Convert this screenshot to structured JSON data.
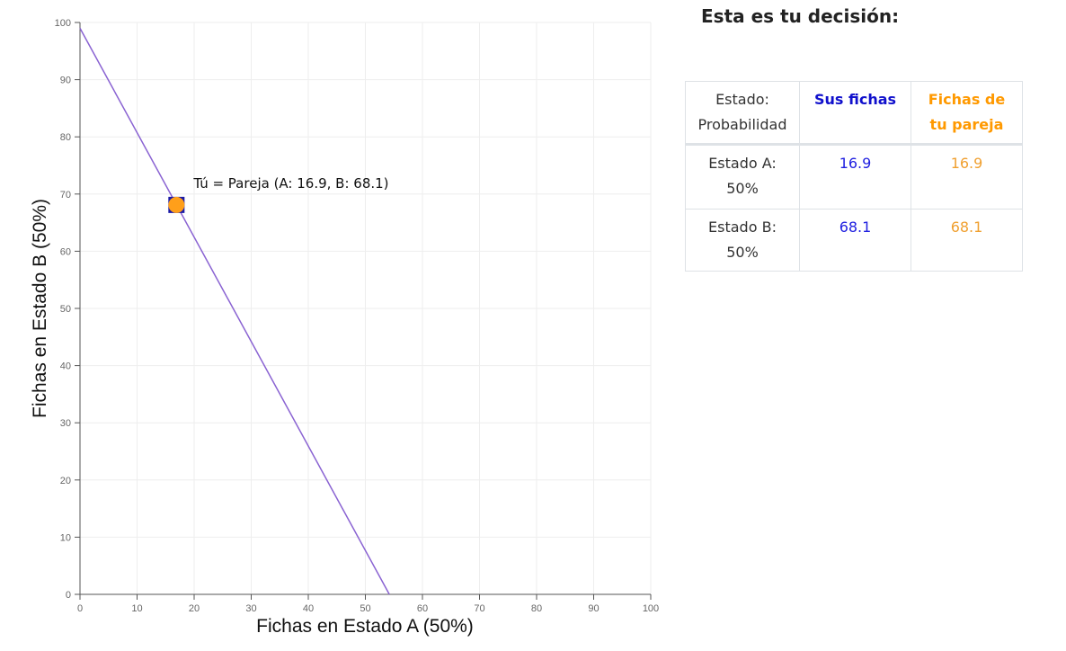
{
  "chart_data": {
    "type": "scatter",
    "xlabel": "Fichas en Estado A (50%)",
    "ylabel": "Fichas en Estado B (50%)",
    "xlim": [
      0,
      100
    ],
    "ylim": [
      0,
      100
    ],
    "x_ticks": [
      0,
      10,
      20,
      30,
      40,
      50,
      60,
      70,
      80,
      90,
      100
    ],
    "y_ticks": [
      0,
      10,
      20,
      30,
      40,
      50,
      60,
      70,
      80,
      90,
      100
    ],
    "grid": true,
    "budget_line": {
      "x": [
        0,
        54.2
      ],
      "y": [
        99,
        0
      ],
      "color": "#8a63d2"
    },
    "point": {
      "x": 16.9,
      "y": 68.1,
      "label": "Tú = Pareja (A: 16.9, B: 68.1)",
      "own_marker_color": "#1a1aa6",
      "partner_marker_color": "#ff9f1a"
    }
  },
  "decision": {
    "title": "Esta es tu decisión:",
    "headers": [
      "Estado: Probabilidad",
      "Sus fichas",
      "Fichas de tu pareja"
    ],
    "rows": [
      {
        "state": "Estado A: 50%",
        "own": "16.9",
        "partner": "16.9"
      },
      {
        "state": "Estado B: 50%",
        "own": "68.1",
        "partner": "68.1"
      }
    ],
    "colors": {
      "own": "#1010cc",
      "partner": "#ff9900"
    }
  }
}
